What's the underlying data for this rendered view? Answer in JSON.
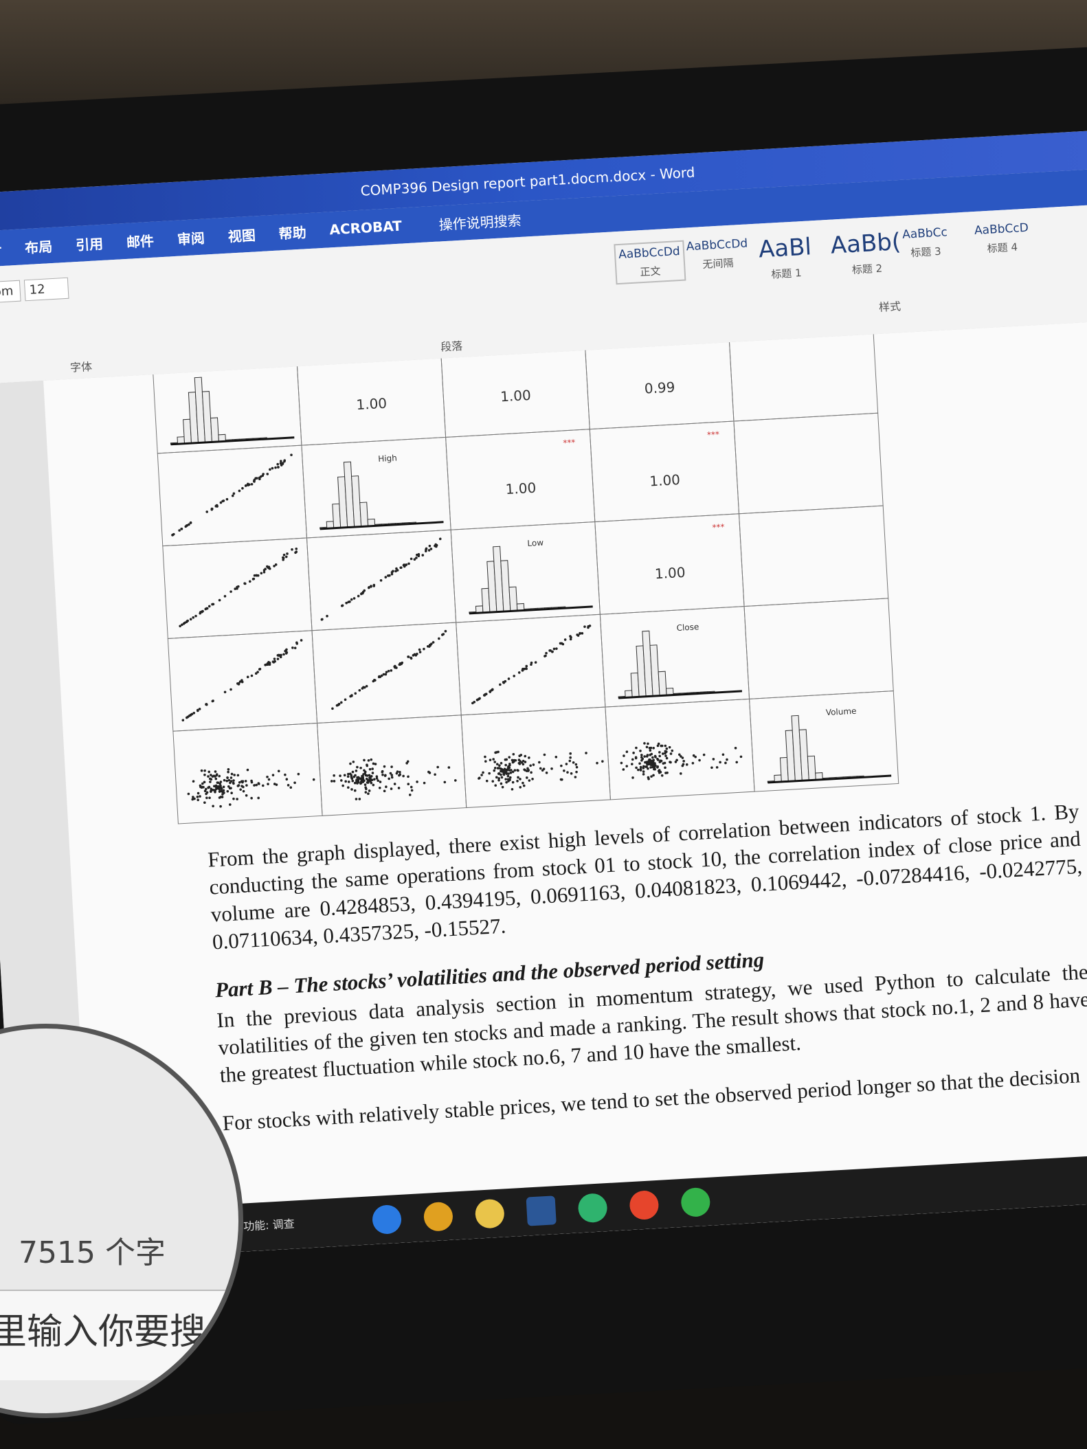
{
  "window": {
    "title": "COMP396 Design report part1.docm.docx - Word"
  },
  "ribbon": {
    "tabs": [
      "设计",
      "布局",
      "引用",
      "邮件",
      "审阅",
      "视图",
      "帮助",
      "ACROBAT"
    ],
    "search": "操作说明搜索",
    "font_name": "v Rom",
    "font_size": "12",
    "groups": [
      "字体",
      "段落",
      "样式"
    ],
    "styles": [
      {
        "preview": "AaBbCcDd",
        "name": "正文"
      },
      {
        "preview": "AaBbCcDd",
        "name": "无间隔"
      },
      {
        "preview": "AaBl",
        "name": "标题 1"
      },
      {
        "preview": "AaBb(",
        "name": "标题 2"
      },
      {
        "preview": "AaBbCc",
        "name": "标题 3"
      },
      {
        "preview": "AaBbCcD",
        "name": "标题 4"
      }
    ]
  },
  "matrix": {
    "correlations": [
      "1.00",
      "1.00",
      "0.99",
      "1.00",
      "1.00",
      "1.00"
    ],
    "labels": [
      "High",
      "Low",
      "Close",
      "Volume"
    ],
    "stars": "***"
  },
  "document": {
    "paragraph_1": "From the graph displayed, there exist high levels of correlation between indicators of stock 1. By conducting the same operations from stock 01 to stock 10, the correlation index of close price and volume are 0.4284853, 0.4394195, 0.0691163, 0.04081823, 0.1069442, -0.07284416, -0.0242775, 0.07110634, 0.4357325, -0.15527.",
    "heading": "Part B – The stocks’ volatilities and the observed period setting",
    "paragraph_2": "In the previous data analysis section in momentum strategy, we used Python to calculate the volatilities of the given ten stocks and made a ranking. The result shows that stock no.1, 2 and 8 have the greatest fluctuation while stock no.6, 7 and 10 have the smallest.",
    "paragraph_3": "For stocks with relatively stable prices, we tend to set the observed period longer so that the decision"
  },
  "status": {
    "word_count": "7515 个字",
    "accessibility": "辅助功能: 调查",
    "search_placeholder": "里输入你要搜"
  }
}
